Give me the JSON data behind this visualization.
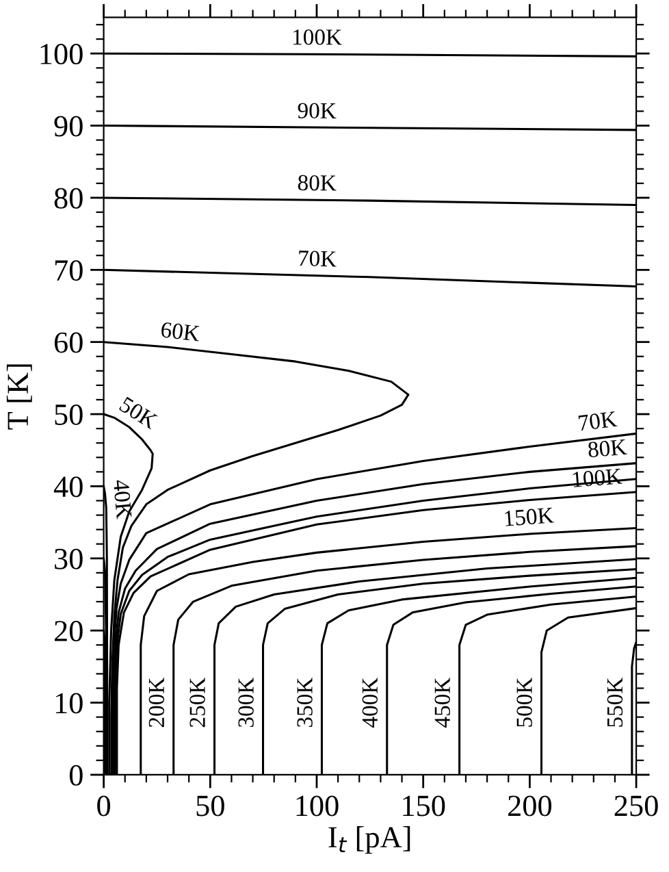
{
  "chart_data": {
    "type": "line",
    "xlabel": "I$_{t}$ [pA]",
    "ylabel": "T [K]",
    "xlim": [
      0,
      250
    ],
    "ylim": [
      0,
      105
    ],
    "xticks": [
      0,
      50,
      100,
      150,
      200,
      250
    ],
    "yticks": [
      0,
      10,
      20,
      30,
      40,
      50,
      60,
      70,
      80,
      90,
      100
    ],
    "grid": false,
    "legend": false,
    "marker": "none",
    "line_style": "solid",
    "series": [
      {
        "color": "#000000",
        "x": [
          0,
          100,
          250
        ],
        "values": [
          100,
          99.9,
          99.6
        ]
      },
      {
        "color": "#000000",
        "x": [
          0,
          125,
          250
        ],
        "values": [
          90,
          89.7,
          89.4
        ]
      },
      {
        "color": "#000000",
        "x": [
          0,
          125,
          250
        ],
        "values": [
          80,
          79.6,
          79.0
        ]
      },
      {
        "color": "#000000",
        "x": [
          0,
          125,
          250
        ],
        "values": [
          70,
          69,
          67.7
        ]
      },
      {
        "color": "#000000",
        "x": [
          0,
          30,
          60,
          90,
          115,
          135,
          143,
          140,
          130,
          110,
          90,
          70,
          50,
          30,
          20,
          13,
          9,
          6.5,
          5,
          4,
          3.6,
          3.6
        ],
        "values": [
          60,
          59.3,
          58.3,
          57.3,
          56,
          54.5,
          52.7,
          51.3,
          49.8,
          47.8,
          46,
          44.2,
          42.2,
          39.5,
          37.5,
          34.5,
          31.5,
          27,
          22,
          15,
          8,
          0
        ]
      },
      {
        "color": "#000000",
        "x": [
          0,
          5,
          12,
          18,
          22,
          23,
          22.5,
          18,
          12,
          8,
          5,
          3.5,
          2.6,
          2.6
        ],
        "values": [
          50,
          49.5,
          48.2,
          46.5,
          45,
          44.5,
          42.5,
          39.5,
          36.5,
          33,
          27,
          20,
          10,
          0
        ]
      },
      {
        "color": "#000000",
        "x": [
          0,
          0.6,
          1.2,
          1.5,
          1.6,
          1.6
        ],
        "values": [
          40,
          39,
          37,
          30,
          15,
          0
        ]
      },
      {
        "color": "#000000",
        "x": [
          0,
          0.7,
          1.1,
          1.2
        ],
        "values": [
          30,
          28,
          20,
          0
        ]
      },
      {
        "color": "#000000",
        "x": [
          0,
          0.6,
          0.8
        ],
        "values": [
          20,
          18,
          0
        ]
      },
      {
        "color": "#000000",
        "x": [
          0,
          0.3,
          0.4
        ],
        "values": [
          10,
          8,
          0
        ]
      },
      {
        "color": "#000000",
        "x": [
          4.2,
          4.2,
          4.8,
          6,
          8,
          12,
          20,
          50,
          100,
          150,
          200,
          250
        ],
        "values": [
          0,
          12,
          18,
          23,
          26.5,
          29.8,
          33.5,
          37.5,
          41,
          43.5,
          45.5,
          47.3
        ]
      },
      {
        "color": "#000000",
        "x": [
          4.8,
          4.8,
          5.5,
          7,
          10,
          15,
          25,
          50,
          100,
          150,
          200,
          250
        ],
        "values": [
          0,
          12,
          18,
          22.5,
          25.8,
          28.3,
          31.3,
          34.8,
          38,
          40.3,
          42,
          43.2
        ]
      },
      {
        "color": "#000000",
        "x": [
          5.4,
          5.4,
          6.2,
          8,
          12,
          18,
          30,
          50,
          100,
          150,
          200,
          250
        ],
        "values": [
          0,
          12,
          18,
          22.3,
          25.5,
          27.7,
          30.2,
          32.6,
          35.8,
          38,
          39.7,
          41
        ]
      },
      {
        "color": "#000000",
        "x": [
          6.2,
          6.2,
          7,
          9.5,
          14,
          22,
          50,
          100,
          150,
          200,
          250
        ],
        "values": [
          0,
          12,
          18,
          22.5,
          25.2,
          27.5,
          31.2,
          34.7,
          36.7,
          38.1,
          39.2
        ]
      },
      {
        "color": "#000000",
        "x": [
          17.4,
          17.4,
          19,
          25,
          40,
          70,
          100,
          150,
          200,
          250
        ],
        "values": [
          0,
          18,
          22,
          25.5,
          27.8,
          29.5,
          30.8,
          32.3,
          33.4,
          34.2
        ]
      },
      {
        "color": "#000000",
        "x": [
          32.8,
          32.8,
          35,
          42,
          60,
          100,
          150,
          200,
          250
        ],
        "values": [
          0,
          18,
          21.5,
          24,
          26.2,
          28.3,
          29.8,
          30.9,
          31.7
        ]
      },
      {
        "color": "#000000",
        "x": [
          52,
          52,
          54,
          62,
          80,
          120,
          180,
          250
        ],
        "values": [
          0,
          18,
          21,
          23.3,
          25,
          26.8,
          28.6,
          29.9
        ]
      },
      {
        "color": "#000000",
        "x": [
          74.8,
          74.8,
          77,
          85,
          110,
          150,
          200,
          250
        ],
        "values": [
          0,
          18,
          21,
          23,
          25,
          26.5,
          27.6,
          28.5
        ]
      },
      {
        "color": "#000000",
        "x": [
          102.4,
          102.4,
          105,
          115,
          140,
          200,
          250
        ],
        "values": [
          0,
          18,
          21,
          22.8,
          24.3,
          26.1,
          27.3
        ]
      },
      {
        "color": "#000000",
        "x": [
          133,
          133,
          136,
          145,
          170,
          210,
          250
        ],
        "values": [
          0,
          18,
          20.8,
          22.5,
          23.9,
          25.1,
          26.1
        ]
      },
      {
        "color": "#000000",
        "x": [
          167,
          167,
          170,
          180,
          210,
          250
        ],
        "values": [
          0,
          18,
          20.8,
          22.2,
          23.6,
          24.7
        ]
      },
      {
        "color": "#000000",
        "x": [
          205.5,
          205.5,
          208,
          218,
          250
        ],
        "values": [
          0,
          17,
          20,
          21.8,
          23.1
        ]
      },
      {
        "color": "#000000",
        "x": [
          248,
          248,
          249,
          250
        ],
        "values": [
          0,
          15,
          17.5,
          18.4
        ]
      }
    ],
    "annotations": [
      {
        "text": "100K",
        "x": 100,
        "y": 99.9
      },
      {
        "text": "90K",
        "x": 100,
        "y": 89.7
      },
      {
        "text": "80K",
        "x": 100,
        "y": 79.7
      },
      {
        "text": "70K",
        "x": 100,
        "y": 69.2
      },
      {
        "text": "60K",
        "x": 35,
        "y": 59.1
      },
      {
        "text": "50K",
        "x": 12,
        "y": 48.2
      },
      {
        "text": "40K",
        "x": 0.9,
        "y": 38
      },
      {
        "text": "70K",
        "x": 232.7,
        "y": 46.7
      },
      {
        "text": "80K",
        "x": 237,
        "y": 42.9
      },
      {
        "text": "150K",
        "x": 200,
        "y": 33.4
      },
      {
        "text": "100K",
        "x": 232,
        "y": 38.8
      },
      {
        "text": "200K",
        "x": 32.8,
        "y": 10
      },
      {
        "text": "250K",
        "x": 52,
        "y": 10
      },
      {
        "text": "300K",
        "x": 74.8,
        "y": 10
      },
      {
        "text": "350K",
        "x": 102.4,
        "y": 10
      },
      {
        "text": "400K",
        "x": 133,
        "y": 10
      },
      {
        "text": "450K",
        "x": 167,
        "y": 10
      },
      {
        "text": "500K",
        "x": 205.5,
        "y": 10
      },
      {
        "text": "550K",
        "x": 248,
        "y": 10
      }
    ]
  }
}
